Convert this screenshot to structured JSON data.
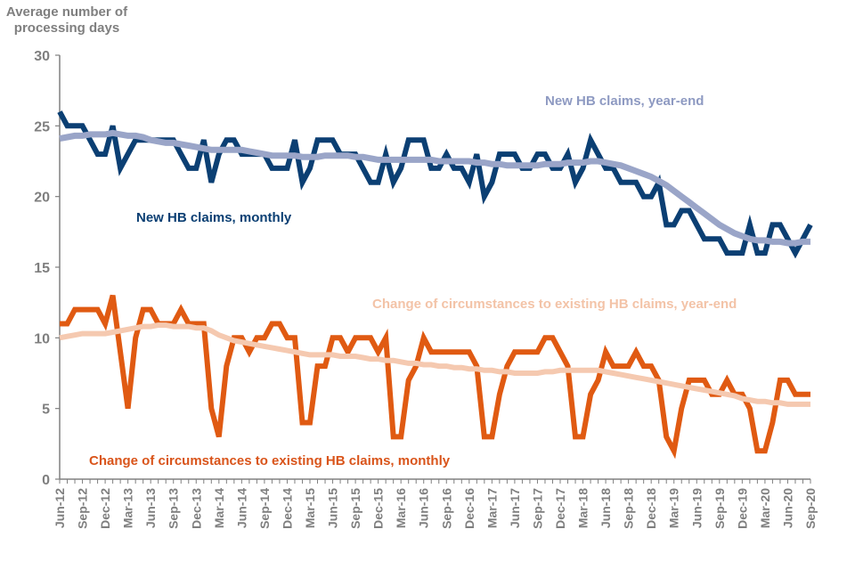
{
  "chart_data": {
    "type": "line",
    "title": "",
    "ylabel": "Average number of processing days",
    "xlabel": "",
    "ylim": [
      0,
      30
    ],
    "yticks": [
      0,
      5,
      10,
      15,
      20,
      25,
      30
    ],
    "grid": false,
    "legend": "inline annotations",
    "x_start": "Jun-12",
    "x_end": "Sep-20",
    "x_frequency": "monthly",
    "x_tick_labels": [
      "Jun-12",
      "Sep-12",
      "Dec-12",
      "Mar-13",
      "Jun-13",
      "Sep-13",
      "Dec-13",
      "Mar-14",
      "Jun-14",
      "Sep-14",
      "Dec-14",
      "Mar-15",
      "Jun-15",
      "Sep-15",
      "Dec-15",
      "Mar-16",
      "Jun-16",
      "Sep-16",
      "Dec-16",
      "Mar-17",
      "Jun-17",
      "Sep-17",
      "Dec-17",
      "Mar-18",
      "Jun-18",
      "Sep-18",
      "Dec-18",
      "Mar-19",
      "Jun-19",
      "Sep-19",
      "Dec-19",
      "Mar-20",
      "Jun-20",
      "Sep-20"
    ],
    "series": [
      {
        "name": "New HB claims, monthly",
        "color": "#0b3f73",
        "values": [
          26,
          25,
          25,
          25,
          24,
          23,
          23,
          25,
          22,
          23,
          24,
          24,
          24,
          24,
          24,
          24,
          23,
          22,
          22,
          24,
          21,
          23,
          24,
          24,
          23,
          23,
          23,
          23,
          22,
          22,
          22,
          24,
          21,
          22,
          24,
          24,
          24,
          23,
          23,
          23,
          22,
          21,
          21,
          23,
          21,
          22,
          24,
          24,
          24,
          22,
          22,
          23,
          22,
          22,
          21,
          23,
          20,
          21,
          23,
          23,
          23,
          22,
          22,
          23,
          23,
          22,
          22,
          23,
          21,
          22,
          24,
          23,
          22,
          22,
          21,
          21,
          21,
          20,
          20,
          21,
          18,
          18,
          19,
          19,
          18,
          17,
          17,
          17,
          16,
          16,
          16,
          18,
          16,
          16,
          18,
          18,
          17,
          16,
          17,
          18
        ]
      },
      {
        "name": "New HB claims, year-end",
        "color": "#9aa5c8",
        "values": [
          24.1,
          24.2,
          24.3,
          24.3,
          24.4,
          24.4,
          24.4,
          24.5,
          24.4,
          24.3,
          24.3,
          24.2,
          24.0,
          23.9,
          23.8,
          23.8,
          23.7,
          23.6,
          23.5,
          23.4,
          23.3,
          23.3,
          23.3,
          23.3,
          23.3,
          23.2,
          23.1,
          23.0,
          22.9,
          22.9,
          22.9,
          22.9,
          22.8,
          22.8,
          22.8,
          22.9,
          22.9,
          22.9,
          22.9,
          22.8,
          22.8,
          22.7,
          22.6,
          22.6,
          22.6,
          22.6,
          22.6,
          22.6,
          22.6,
          22.6,
          22.5,
          22.5,
          22.5,
          22.5,
          22.5,
          22.4,
          22.4,
          22.3,
          22.3,
          22.2,
          22.2,
          22.2,
          22.2,
          22.2,
          22.3,
          22.3,
          22.3,
          22.4,
          22.4,
          22.4,
          22.5,
          22.5,
          22.4,
          22.3,
          22.2,
          22.0,
          21.8,
          21.6,
          21.4,
          21.1,
          20.8,
          20.4,
          20.0,
          19.6,
          19.2,
          18.8,
          18.4,
          18.0,
          17.7,
          17.4,
          17.2,
          17.0,
          16.9,
          16.9,
          16.8,
          16.8,
          16.7,
          16.7,
          16.8,
          16.8
        ]
      },
      {
        "name": "Change of circumstances to existing HB claims, monthly",
        "color": "#e05a12",
        "values": [
          11,
          11,
          12,
          12,
          12,
          12,
          11,
          13,
          9,
          5,
          10,
          12,
          12,
          11,
          11,
          11,
          12,
          11,
          11,
          11,
          5,
          3,
          8,
          10,
          10,
          9,
          10,
          10,
          11,
          11,
          10,
          10,
          4,
          4,
          8,
          8,
          10,
          10,
          9,
          10,
          10,
          10,
          9,
          10,
          3,
          3,
          7,
          8,
          10,
          9,
          9,
          9,
          9,
          9,
          9,
          8,
          3,
          3,
          6,
          8,
          9,
          9,
          9,
          9,
          10,
          10,
          9,
          8,
          3,
          3,
          6,
          7,
          9,
          8,
          8,
          8,
          9,
          8,
          8,
          7,
          3,
          2,
          5,
          7,
          7,
          7,
          6,
          6,
          7,
          6,
          6,
          5,
          2,
          2,
          4,
          7,
          7,
          6,
          6,
          6
        ]
      },
      {
        "name": "Change of circumstances to existing HB claims, year-end",
        "color": "#f5c9b0",
        "values": [
          10.0,
          10.1,
          10.2,
          10.3,
          10.3,
          10.3,
          10.3,
          10.4,
          10.5,
          10.6,
          10.7,
          10.8,
          10.8,
          10.9,
          10.9,
          10.8,
          10.8,
          10.8,
          10.7,
          10.7,
          10.5,
          10.2,
          10.0,
          9.8,
          9.7,
          9.6,
          9.5,
          9.4,
          9.3,
          9.2,
          9.1,
          9.0,
          8.9,
          8.8,
          8.8,
          8.8,
          8.8,
          8.7,
          8.7,
          8.7,
          8.6,
          8.5,
          8.5,
          8.4,
          8.4,
          8.3,
          8.2,
          8.2,
          8.1,
          8.1,
          8.0,
          8.0,
          7.9,
          7.9,
          7.8,
          7.8,
          7.7,
          7.7,
          7.6,
          7.6,
          7.5,
          7.5,
          7.5,
          7.5,
          7.6,
          7.6,
          7.7,
          7.7,
          7.7,
          7.7,
          7.7,
          7.7,
          7.6,
          7.5,
          7.4,
          7.3,
          7.2,
          7.1,
          7.0,
          6.9,
          6.8,
          6.7,
          6.6,
          6.5,
          6.4,
          6.3,
          6.2,
          6.1,
          6.0,
          5.9,
          5.7,
          5.6,
          5.5,
          5.5,
          5.4,
          5.4,
          5.3,
          5.3,
          5.3,
          5.3
        ]
      }
    ],
    "annotations": [
      {
        "text": "New HB claims, year-end",
        "series": "New HB claims, year-end"
      },
      {
        "text": "New HB claims, monthly",
        "series": "New HB claims, monthly"
      },
      {
        "text": "Change of circumstances to existing HB claims, year-end",
        "series": "Change of circumstances to existing HB claims, year-end"
      },
      {
        "text": "Change of circumstances to existing HB claims, monthly",
        "series": "Change of circumstances to existing HB claims, monthly"
      }
    ]
  },
  "labels": {
    "y_title_line1": "Average number of",
    "y_title_line2": "processing days"
  }
}
